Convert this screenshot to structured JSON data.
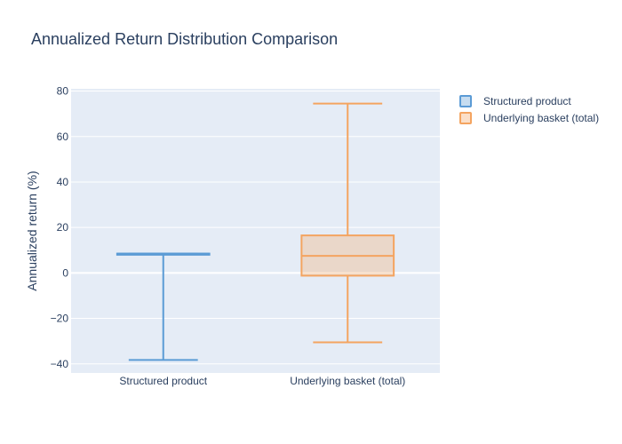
{
  "chart_data": {
    "type": "box",
    "title": "Annualized Return Distribution Comparison",
    "xlabel": "",
    "ylabel": "Annualized return (%)",
    "categories": [
      "Structured product",
      "Underlying basket (total)"
    ],
    "ylim": [
      -44,
      81
    ],
    "yticks": [
      80,
      60,
      40,
      20,
      0,
      -20,
      -40
    ],
    "ytick_labels": [
      "80",
      "60",
      "40",
      "20",
      "0",
      "−20",
      "−40"
    ],
    "grid": true,
    "legend_position": "top-right",
    "series": [
      {
        "name": "Structured product",
        "category": "Structured product",
        "min": -38.3,
        "q1": 8.0,
        "median": 8.5,
        "q3": 8.5,
        "max": 8.5,
        "color": "#5b9bd5"
      },
      {
        "name": "Underlying basket (total)",
        "category": "Underlying basket (total)",
        "min": -30.5,
        "q1": -1.2,
        "median": 7.5,
        "q3": 16.5,
        "max": 74.5,
        "color": "#f4a460"
      }
    ]
  }
}
